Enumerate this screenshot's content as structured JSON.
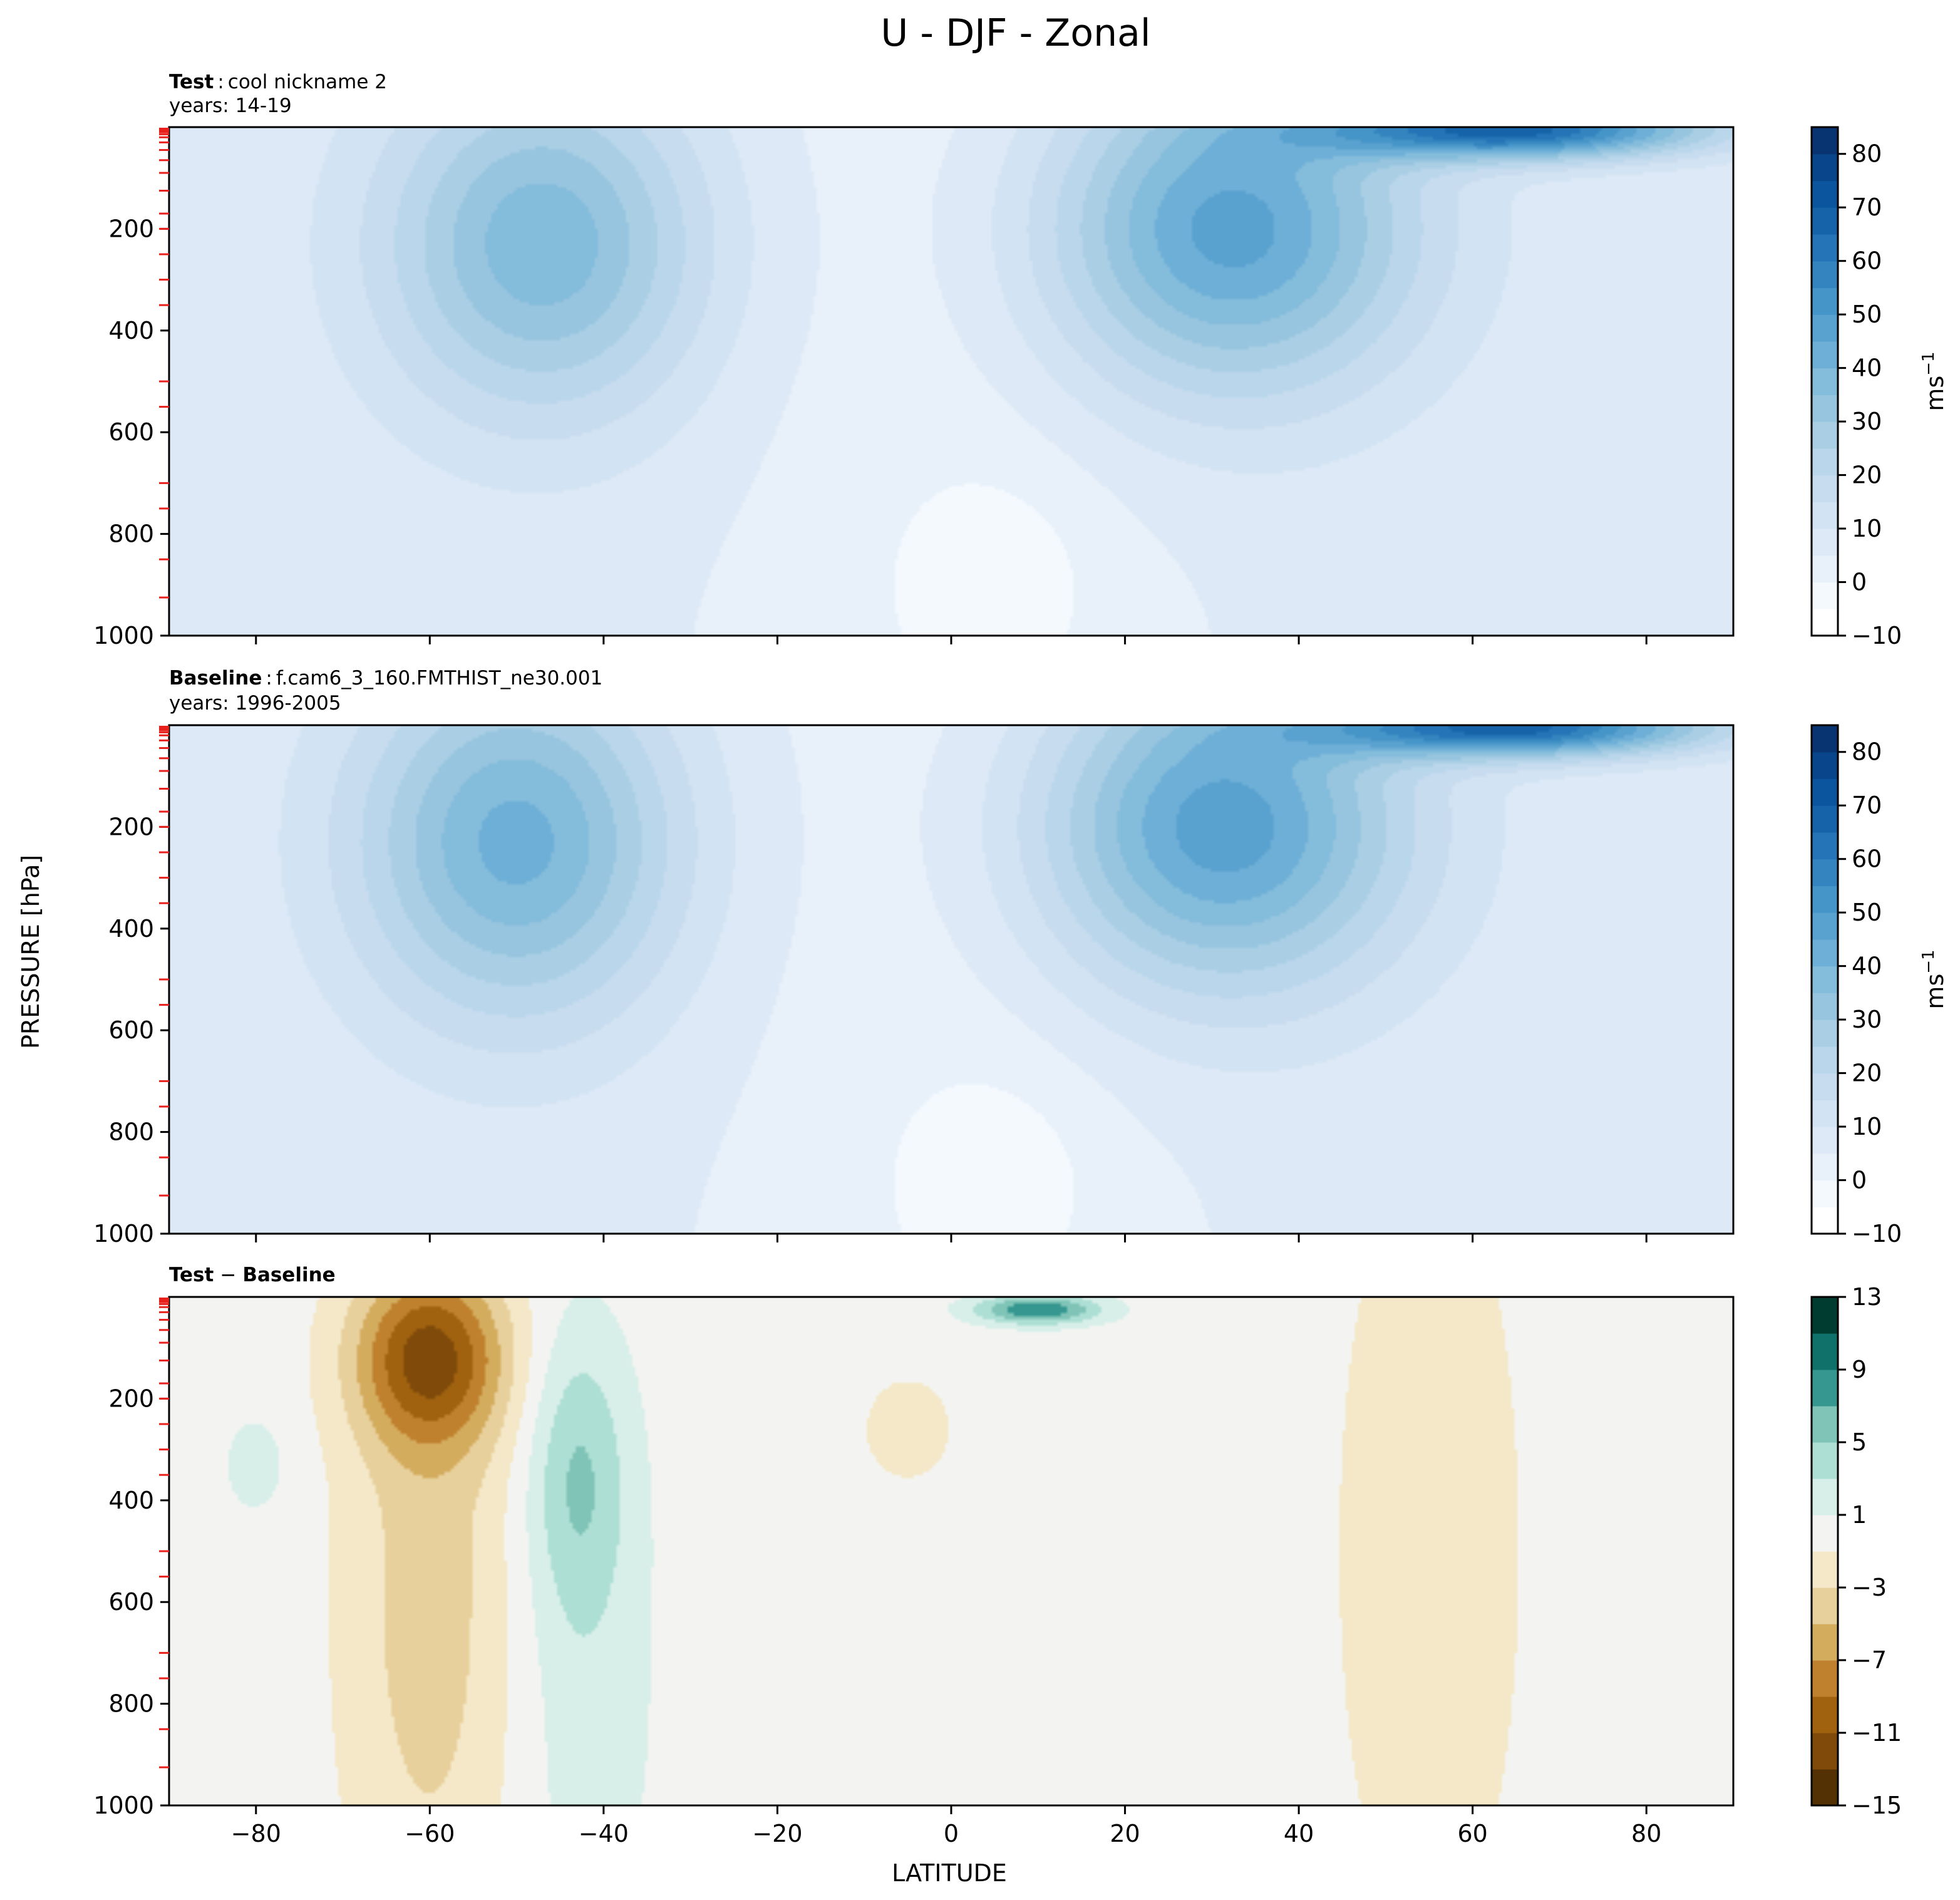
{
  "figure": {
    "title": "U - DJF - Zonal",
    "ylabel": "PRESSURE [hPa]",
    "xlabel": "LATITUDE"
  },
  "chart_data": [
    {
      "type": "contourf",
      "panel": "test",
      "title_bold": "Test",
      "title_sep": ":",
      "title_name": "cool nickname 2",
      "years": "years: 14-19",
      "x_range": [
        -90,
        90
      ],
      "y_range": [
        1000,
        0
      ],
      "y_inverted": true,
      "xticks": [
        -80,
        -60,
        -40,
        -20,
        0,
        20,
        40,
        60,
        80
      ],
      "yticks": [
        "200",
        "400",
        "600",
        "800",
        "1000"
      ],
      "yticks_values": [
        200,
        400,
        600,
        800,
        1000
      ],
      "model_levels_hPa": [
        3,
        5,
        7,
        10,
        14,
        20,
        30,
        45,
        65,
        90,
        125,
        170,
        200,
        250,
        300,
        350,
        500,
        550,
        700,
        750,
        850,
        925
      ],
      "jets": [
        {
          "lat": -47,
          "p": 230,
          "peak": 33,
          "lat_sigma": 13,
          "p_sigma": 240
        },
        {
          "lat": 32,
          "p": 200,
          "peak": 42,
          "lat_sigma": 15,
          "p_sigma": 230
        },
        {
          "lat": 65,
          "p": 5,
          "peak": 60,
          "lat_sigma": 15,
          "p_sigma": 40
        }
      ],
      "colorbar": {
        "label": "ms",
        "label_sup": "−1",
        "ticks": [
          "80",
          "70",
          "60",
          "50",
          "40",
          "30",
          "20",
          "10",
          "0",
          "−10"
        ],
        "ticks_values": [
          80,
          70,
          60,
          50,
          40,
          30,
          20,
          10,
          0,
          -10
        ],
        "levels": [
          -10,
          -5,
          0,
          5,
          10,
          15,
          20,
          25,
          30,
          35,
          40,
          45,
          50,
          55,
          60,
          65,
          70,
          75,
          80,
          85
        ],
        "colors": [
          "#ffffff",
          "#f4f9fe",
          "#e8f1fa",
          "#dde9f6",
          "#d2e3f3",
          "#c7dcef",
          "#bad6eb",
          "#aacfe5",
          "#97c5df",
          "#84bcdb",
          "#6dafd7",
          "#59a1cf",
          "#4695c8",
          "#3484bf",
          "#2474b7",
          "#1663aa",
          "#0b559f",
          "#08458a",
          "#083471"
        ]
      }
    },
    {
      "type": "contourf",
      "panel": "baseline",
      "title_bold": "Baseline",
      "title_sep": ":",
      "title_name": "f.cam6_3_160.FMTHIST_ne30.001",
      "years": "years: 1996-2005",
      "x_range": [
        -90,
        90
      ],
      "y_range": [
        1000,
        0
      ],
      "y_inverted": true,
      "xticks": [
        -80,
        -60,
        -40,
        -20,
        0,
        20,
        40,
        60,
        80
      ],
      "yticks": [
        "200",
        "400",
        "600",
        "800",
        "1000"
      ],
      "yticks_values": [
        200,
        400,
        600,
        800,
        1000
      ],
      "model_levels_hPa": [
        3,
        5,
        7,
        10,
        14,
        20,
        30,
        45,
        65,
        90,
        125,
        170,
        200,
        250,
        300,
        350,
        500,
        550,
        700,
        750,
        850,
        925
      ],
      "jets": [
        {
          "lat": -50,
          "p": 230,
          "peak": 36,
          "lat_sigma": 13,
          "p_sigma": 250
        },
        {
          "lat": 31,
          "p": 200,
          "peak": 43,
          "lat_sigma": 15,
          "p_sigma": 230
        },
        {
          "lat": 65,
          "p": 5,
          "peak": 60,
          "lat_sigma": 15,
          "p_sigma": 40
        }
      ],
      "colorbar": {
        "label": "ms",
        "label_sup": "−1",
        "ticks": [
          "80",
          "70",
          "60",
          "50",
          "40",
          "30",
          "20",
          "10",
          "0",
          "−10"
        ],
        "ticks_values": [
          80,
          70,
          60,
          50,
          40,
          30,
          20,
          10,
          0,
          -10
        ],
        "levels": [
          -10,
          -5,
          0,
          5,
          10,
          15,
          20,
          25,
          30,
          35,
          40,
          45,
          50,
          55,
          60,
          65,
          70,
          75,
          80,
          85
        ],
        "colors": [
          "#ffffff",
          "#f4f9fe",
          "#e8f1fa",
          "#dde9f6",
          "#d2e3f3",
          "#c7dcef",
          "#bad6eb",
          "#aacfe5",
          "#97c5df",
          "#84bcdb",
          "#6dafd7",
          "#59a1cf",
          "#4695c8",
          "#3484bf",
          "#2474b7",
          "#1663aa",
          "#0b559f",
          "#08458a",
          "#083471"
        ]
      }
    },
    {
      "type": "contourf",
      "panel": "difference",
      "title_bold_a": "Test",
      "title_minus": "−",
      "title_bold_b": "Baseline",
      "x_range": [
        -90,
        90
      ],
      "y_range": [
        1000,
        0
      ],
      "y_inverted": true,
      "xticks": [
        "−80",
        "−60",
        "−40",
        "−20",
        "0",
        "20",
        "40",
        "60",
        "80"
      ],
      "xticks_values": [
        -80,
        -60,
        -40,
        -20,
        0,
        20,
        40,
        60,
        80
      ],
      "yticks": [
        "200",
        "400",
        "600",
        "800",
        "1000"
      ],
      "yticks_values": [
        200,
        400,
        600,
        800,
        1000
      ],
      "model_levels_hPa": [
        3,
        5,
        7,
        10,
        14,
        20,
        30,
        45,
        65,
        90,
        125,
        170,
        200,
        250,
        300,
        350,
        500,
        550,
        700,
        750,
        850,
        925
      ],
      "features": [
        {
          "lat": -60,
          "p": 120,
          "amp": -10,
          "lat_sigma": 6,
          "p_sigma": 120
        },
        {
          "lat": -60,
          "p": 600,
          "amp": -4,
          "lat_sigma": 7,
          "p_sigma": 500
        },
        {
          "lat": -43,
          "p": 350,
          "amp": 4.5,
          "lat_sigma": 4,
          "p_sigma": 200
        },
        {
          "lat": -42,
          "p": 800,
          "amp": 2,
          "lat_sigma": 6,
          "p_sigma": 400
        },
        {
          "lat": 10,
          "p": 25,
          "amp": 9,
          "lat_sigma": 5,
          "p_sigma": 20
        },
        {
          "lat": -5,
          "p": 260,
          "amp": -2,
          "lat_sigma": 4,
          "p_sigma": 80
        },
        {
          "lat": 55,
          "p": 500,
          "amp": -2.3,
          "lat_sigma": 8,
          "p_sigma": 600
        },
        {
          "lat": -80,
          "p": 330,
          "amp": 1.8,
          "lat_sigma": 3,
          "p_sigma": 80
        }
      ],
      "colorbar": {
        "ticks": [
          "13",
          "9",
          "5",
          "1",
          "−3",
          "−7",
          "−11",
          "−15"
        ],
        "ticks_values": [
          13,
          9,
          5,
          1,
          -3,
          -7,
          -11,
          -15
        ],
        "levels": [
          -15,
          -13,
          -11,
          -9,
          -7,
          -5,
          -3,
          -1,
          1,
          3,
          5,
          7,
          9,
          11,
          13
        ],
        "colors": [
          "#543005",
          "#7f4a0a",
          "#a0620f",
          "#bf812d",
          "#d4ac5e",
          "#e8d09c",
          "#f4e8c8",
          "#f3f4f2",
          "#d8efe9",
          "#aedfd4",
          "#80c4b7",
          "#35978f",
          "#0f716a",
          "#003c30"
        ]
      }
    }
  ]
}
